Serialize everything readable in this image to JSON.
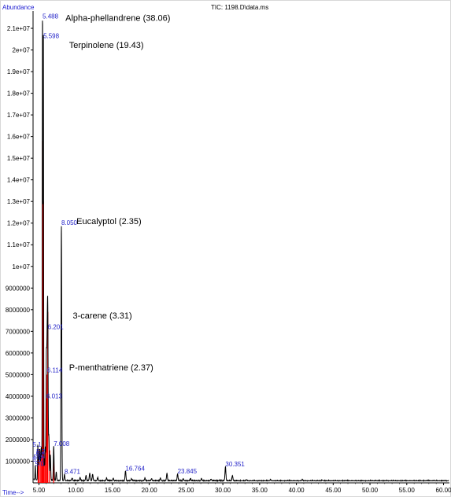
{
  "chart_data": {
    "type": "line",
    "header": "TIC: 1198.D\\data.ms",
    "ylabel": "Abundance",
    "xlabel": "Time-->",
    "xlim": [
      4.2,
      60.8
    ],
    "ylim": [
      0,
      21800000
    ],
    "y_ticks": [
      {
        "value": 1000000,
        "label": "1000000"
      },
      {
        "value": 2000000,
        "label": "2000000"
      },
      {
        "value": 3000000,
        "label": "3000000"
      },
      {
        "value": 4000000,
        "label": "4000000"
      },
      {
        "value": 5000000,
        "label": "5000000"
      },
      {
        "value": 6000000,
        "label": "6000000"
      },
      {
        "value": 7000000,
        "label": "7000000"
      },
      {
        "value": 8000000,
        "label": "8000000"
      },
      {
        "value": 9000000,
        "label": "9000000"
      },
      {
        "value": 10000000,
        "label": "1e+07"
      },
      {
        "value": 11000000,
        "label": "1.1e+07"
      },
      {
        "value": 12000000,
        "label": "1.2e+07"
      },
      {
        "value": 13000000,
        "label": "1.3e+07"
      },
      {
        "value": 14000000,
        "label": "1.4e+07"
      },
      {
        "value": 15000000,
        "label": "1.5e+07"
      },
      {
        "value": 16000000,
        "label": "1.6e+07"
      },
      {
        "value": 17000000,
        "label": "1.7e+07"
      },
      {
        "value": 18000000,
        "label": "1.8e+07"
      },
      {
        "value": 19000000,
        "label": "1.9e+07"
      },
      {
        "value": 20000000,
        "label": "2e+07"
      },
      {
        "value": 21000000,
        "label": "2.1e+07"
      }
    ],
    "x_ticks": [
      {
        "value": 5,
        "label": "5.00"
      },
      {
        "value": 10,
        "label": "10.00"
      },
      {
        "value": 15,
        "label": "15.00"
      },
      {
        "value": 20,
        "label": "20.00"
      },
      {
        "value": 25,
        "label": "25.00"
      },
      {
        "value": 30,
        "label": "30.00"
      },
      {
        "value": 35,
        "label": "35.00"
      },
      {
        "value": 40,
        "label": "40.00"
      },
      {
        "value": 45,
        "label": "45.00"
      },
      {
        "value": 50,
        "label": "50.00"
      },
      {
        "value": 55,
        "label": "55.00"
      },
      {
        "value": 60,
        "label": "60.00"
      }
    ],
    "peaks": [
      {
        "rt": 4.5,
        "height": 650000,
        "label": ""
      },
      {
        "rt": 4.85,
        "height": 1600000,
        "label": "5.1"
      },
      {
        "rt": 4.95,
        "height": 1050000,
        "label": "5.0"
      },
      {
        "rt": 5.05,
        "height": 900000,
        "label": "5.17"
      },
      {
        "rt": 5.12,
        "height": 1250000,
        "label": ""
      },
      {
        "rt": 5.2,
        "height": 750000,
        "label": "5.0"
      },
      {
        "rt": 5.28,
        "height": 1150000,
        "label": "5.2"
      },
      {
        "rt": 5.35,
        "height": 1300000,
        "label": "5.2"
      },
      {
        "rt": 5.488,
        "height": 21600000,
        "label": "5.488"
      },
      {
        "rt": 5.598,
        "height": 20800000,
        "label": "5.598"
      },
      {
        "rt": 5.75,
        "height": 1000000,
        "label": ""
      },
      {
        "rt": 5.86,
        "height": 1500000,
        "label": ""
      },
      {
        "rt": 6.0,
        "height": 1600000,
        "label": ""
      },
      {
        "rt": 6.013,
        "height": 3800000,
        "label": "6.013"
      },
      {
        "rt": 6.114,
        "height": 5000000,
        "label": "6.114"
      },
      {
        "rt": 6.201,
        "height": 7000000,
        "label": "6.201"
      },
      {
        "rt": 6.35,
        "height": 2000000,
        "label": ""
      },
      {
        "rt": 6.55,
        "height": 1200000,
        "label": ""
      },
      {
        "rt": 7.008,
        "height": 1600000,
        "label": "7.008"
      },
      {
        "rt": 7.35,
        "height": 400000,
        "label": ""
      },
      {
        "rt": 8.05,
        "height": 11800000,
        "label": "8.050"
      },
      {
        "rt": 8.471,
        "height": 300000,
        "label": "8.471"
      },
      {
        "rt": 9.5,
        "height": 120000,
        "label": ""
      },
      {
        "rt": 10.6,
        "height": 150000,
        "label": ""
      },
      {
        "rt": 11.4,
        "height": 250000,
        "label": ""
      },
      {
        "rt": 11.9,
        "height": 350000,
        "label": ""
      },
      {
        "rt": 12.3,
        "height": 300000,
        "label": ""
      },
      {
        "rt": 13.0,
        "height": 150000,
        "label": ""
      },
      {
        "rt": 14.2,
        "height": 120000,
        "label": ""
      },
      {
        "rt": 15.1,
        "height": 100000,
        "label": ""
      },
      {
        "rt": 16.764,
        "height": 450000,
        "label": "16.764"
      },
      {
        "rt": 17.6,
        "height": 100000,
        "label": ""
      },
      {
        "rt": 19.4,
        "height": 120000,
        "label": ""
      },
      {
        "rt": 20.3,
        "height": 100000,
        "label": ""
      },
      {
        "rt": 21.5,
        "height": 120000,
        "label": ""
      },
      {
        "rt": 22.4,
        "height": 350000,
        "label": ""
      },
      {
        "rt": 23.845,
        "height": 320000,
        "label": "23.845"
      },
      {
        "rt": 24.6,
        "height": 100000,
        "label": ""
      },
      {
        "rt": 25.6,
        "height": 90000,
        "label": ""
      },
      {
        "rt": 27.1,
        "height": 100000,
        "label": ""
      },
      {
        "rt": 28.4,
        "height": 80000,
        "label": ""
      },
      {
        "rt": 30.351,
        "height": 650000,
        "label": "30.351"
      },
      {
        "rt": 31.3,
        "height": 250000,
        "label": ""
      },
      {
        "rt": 33.2,
        "height": 60000,
        "label": ""
      },
      {
        "rt": 36.5,
        "height": 50000,
        "label": ""
      },
      {
        "rt": 40.8,
        "height": 60000,
        "label": ""
      },
      {
        "rt": 43.5,
        "height": 40000,
        "label": ""
      }
    ],
    "integration_marks": [
      {
        "rt": 4.9,
        "height": 1550000
      },
      {
        "rt": 5.05,
        "height": 1000000
      },
      {
        "rt": 5.25,
        "height": 1200000
      },
      {
        "rt": 5.4,
        "height": 1350000
      },
      {
        "rt": 5.488,
        "height": 15800000
      },
      {
        "rt": 5.598,
        "height": 13000000
      },
      {
        "rt": 5.7,
        "height": 900000
      },
      {
        "rt": 5.85,
        "height": 1400000
      },
      {
        "rt": 6.013,
        "height": 3900000
      },
      {
        "rt": 6.114,
        "height": 5000000
      },
      {
        "rt": 6.201,
        "height": 7900000
      },
      {
        "rt": 6.45,
        "height": 1500000
      },
      {
        "rt": 7.008,
        "height": 1100000
      }
    ],
    "annotations": [
      {
        "text": "Alpha-phellandrene (38.06)",
        "rt": 8.6,
        "value": 21350000
      },
      {
        "text": "Terpinolene (19.43)",
        "rt": 9.1,
        "value": 20100000
      },
      {
        "text": "Eucalyptol (2.35)",
        "rt": 10.1,
        "value": 11950000
      },
      {
        "text": "3-carene (3.31)",
        "rt": 9.6,
        "value": 7600000
      },
      {
        "text": "P-menthatriene (2.37)",
        "rt": 9.1,
        "value": 5200000
      }
    ],
    "colors": {
      "trace": "#000000",
      "integration": "#ff0000",
      "labels": "#2323c8",
      "axis_title": "#1a1ad0"
    }
  }
}
